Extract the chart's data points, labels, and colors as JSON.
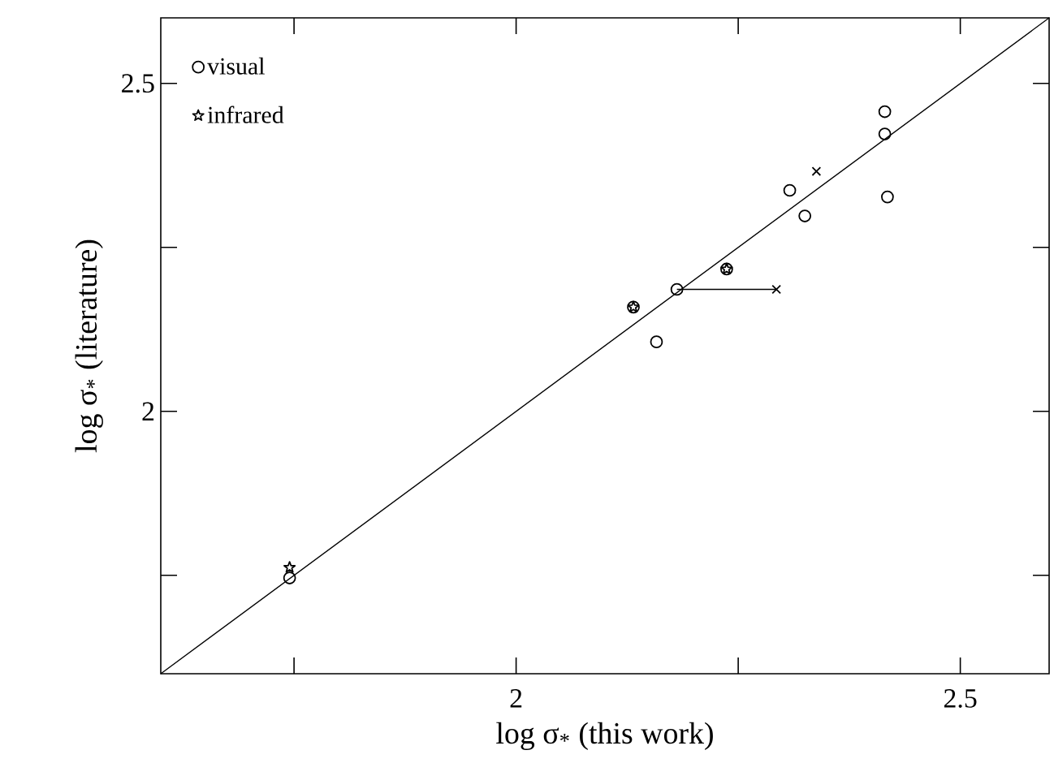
{
  "chart_data": {
    "type": "scatter",
    "xlabel": "log σ$_{*}$ (this work)",
    "ylabel": "log σ$_{*}$ (literature)",
    "xlim": [
      1.6,
      2.6
    ],
    "ylim": [
      1.6,
      2.6
    ],
    "xticks": [
      {
        "value": 1.75,
        "label": null
      },
      2,
      {
        "value": 2.25,
        "label": null
      },
      2.5
    ],
    "yticks": [
      {
        "value": 1.75,
        "label": null
      },
      2,
      {
        "value": 2.25,
        "label": null
      },
      2.5
    ],
    "grid": false,
    "legend": "top left",
    "series": [
      {
        "name": "visual",
        "marker": "circle",
        "color": "#000000",
        "x": [
          1.745,
          2.132,
          2.237,
          2.181,
          2.158,
          2.308,
          2.325,
          2.415,
          2.415,
          2.418
        ],
        "values": [
          1.746,
          2.159,
          2.217,
          2.186,
          2.106,
          2.337,
          2.298,
          2.457,
          2.423,
          2.327
        ]
      },
      {
        "name": "infrared",
        "marker": "star",
        "color": "#000000",
        "x": [
          1.745,
          2.132,
          2.237
        ],
        "values": [
          1.762,
          2.159,
          2.217
        ]
      },
      {
        "marker": "cross",
        "color": "#000000",
        "x": [
          2.293,
          2.338
        ],
        "values": [
          2.186,
          2.366
        ]
      },
      {
        "type": "line",
        "marker": "none",
        "color": "#000000",
        "x": [
          2.181,
          2.293
        ],
        "values": [
          2.186,
          2.186
        ]
      },
      {
        "type": "line",
        "marker": "none",
        "color": "#000000",
        "x": [
          1.6,
          2.6
        ],
        "values": [
          1.6,
          2.6
        ]
      }
    ]
  }
}
